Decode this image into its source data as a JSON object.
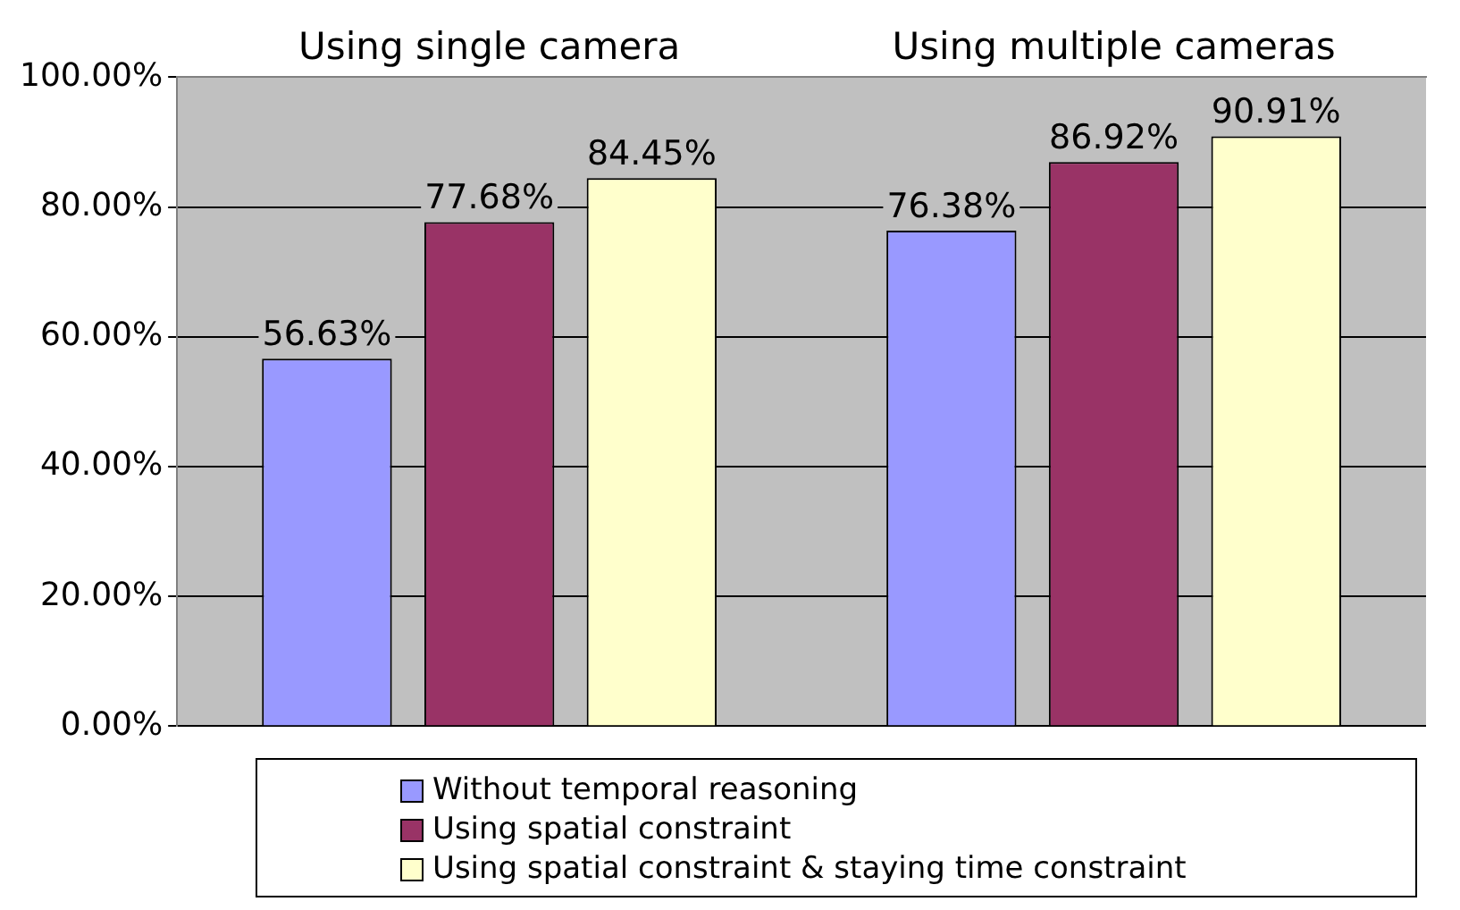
{
  "chart_data": {
    "type": "bar",
    "categories": [
      "Using single camera",
      "Using multiple cameras"
    ],
    "series": [
      {
        "name": "Without temporal reasoning",
        "color": "#9999ff",
        "values": [
          56.63,
          76.38
        ],
        "value_labels": [
          "56.63%",
          "76.38%"
        ]
      },
      {
        "name": "Using spatial constraint",
        "color": "#993366",
        "values": [
          77.68,
          86.92
        ],
        "value_labels": [
          "77.68%",
          "86.92%"
        ]
      },
      {
        "name": "Using spatial constraint & staying time constraint",
        "color": "#ffffcc",
        "values": [
          84.45,
          90.91
        ],
        "value_labels": [
          "84.45%",
          "90.91%"
        ]
      }
    ],
    "ylim": [
      0,
      100
    ],
    "yticks": [
      {
        "value": 0,
        "label": "0.00%"
      },
      {
        "value": 20,
        "label": "20.00%"
      },
      {
        "value": 40,
        "label": "40.00%"
      },
      {
        "value": 60,
        "label": "60.00%"
      },
      {
        "value": 80,
        "label": "80.00%"
      },
      {
        "value": 100,
        "label": "100.00%"
      }
    ],
    "grid": "y",
    "legend": "bottom"
  }
}
